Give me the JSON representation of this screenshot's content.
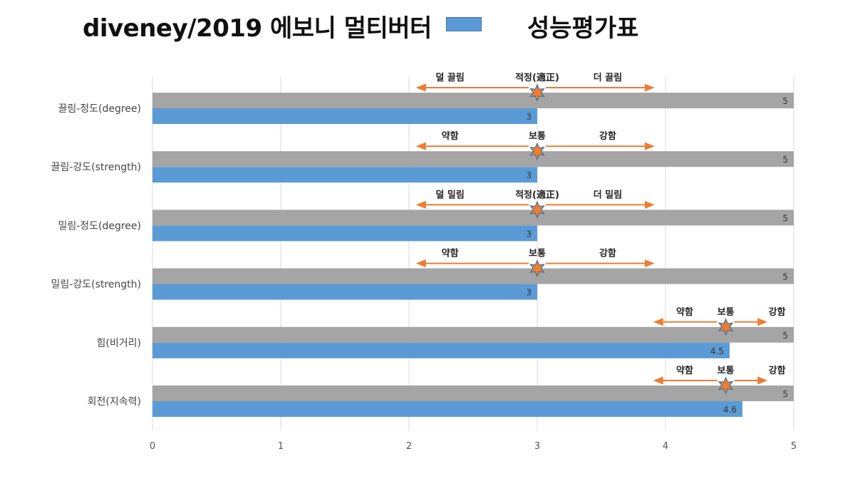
{
  "header": {
    "title_left": "diveney/2019 에보니 멀티버터",
    "title_right": "성능평가표"
  },
  "colors": {
    "max_bar": "#a5a5a5",
    "value_bar": "#5b9bd5",
    "arrow": "#ed7d31",
    "star_fill": "#ed7d31",
    "star_stroke": "#41719c",
    "grid": "#d9d9d9"
  },
  "chart_data": {
    "type": "bar",
    "orientation": "horizontal",
    "title": "diveney/2019 에보니 멀티버터 성능평가표",
    "xlim": [
      0,
      5
    ],
    "xticks": [
      "0",
      "1",
      "2",
      "3",
      "4",
      "5"
    ],
    "grid": "vertical",
    "legend": "top",
    "categories": [
      "끌림-정도(degree)",
      "끌림-강도(strength)",
      "밀림-정도(degree)",
      "밀림-강도(strength)",
      "힘(비거리)",
      "회전(지속력)"
    ],
    "series": [
      {
        "values": [
          5,
          5,
          5,
          5,
          5,
          5
        ],
        "labels": [
          "5",
          "5",
          "5",
          "5",
          "5",
          "5"
        ]
      },
      {
        "values": [
          3,
          3,
          3,
          3,
          4.5,
          4.6
        ],
        "labels": [
          "3",
          "3",
          "3",
          "3",
          "4.5",
          "4.6"
        ]
      }
    ],
    "annotations": [
      {
        "left": "덜 끌림",
        "center": "적정(適正)",
        "right": "더 끌림",
        "marker": 3,
        "arrow_from": 2.07,
        "arrow_to": 3.9
      },
      {
        "left": "약함",
        "center": "보통",
        "right": "강함",
        "marker": 3,
        "arrow_from": 2.07,
        "arrow_to": 3.9
      },
      {
        "left": "덜 밀림",
        "center": "적정(適正)",
        "right": "더 밀림",
        "marker": 3,
        "arrow_from": 2.07,
        "arrow_to": 3.9
      },
      {
        "left": "약함",
        "center": "보통",
        "right": "강함",
        "marker": 3,
        "arrow_from": 2.07,
        "arrow_to": 3.9
      },
      {
        "left": "약함",
        "center": "보통",
        "right": "강함",
        "marker": 4.47,
        "arrow_from": 3.92,
        "arrow_to": 4.78
      },
      {
        "left": "약함",
        "center": "보통",
        "right": "강함",
        "marker": 4.47,
        "arrow_from": 3.92,
        "arrow_to": 4.78
      }
    ]
  }
}
